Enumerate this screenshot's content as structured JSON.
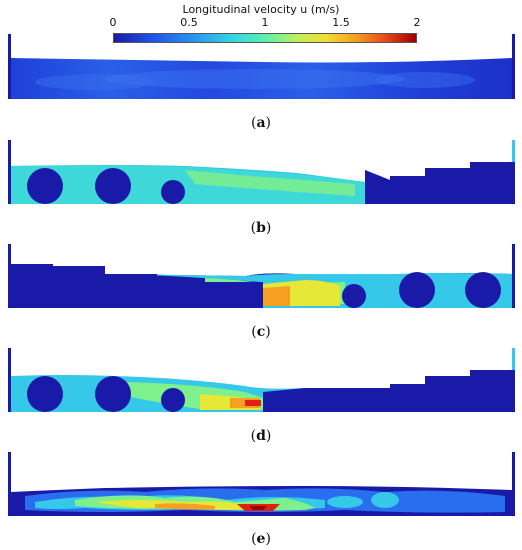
{
  "colorbar": {
    "title": "Longitudinal velocity u (m/s)",
    "ticks": [
      "0",
      "0.5",
      "1",
      "1.5",
      "2"
    ],
    "range": [
      0,
      2
    ]
  },
  "panels": [
    {
      "label": "a",
      "caption_open": "(",
      "caption_close": ")"
    },
    {
      "label": "b",
      "caption_open": "(",
      "caption_close": ")"
    },
    {
      "label": "c",
      "caption_open": "(",
      "caption_close": ")"
    },
    {
      "label": "d",
      "caption_open": "(",
      "caption_close": ")"
    },
    {
      "label": "e",
      "caption_open": "(",
      "caption_close": ")"
    }
  ],
  "colors": {
    "deep_blue": "#1a1aa8",
    "blue": "#1f50e8",
    "cyan": "#35d8e0",
    "green": "#7ef08c",
    "yellow": "#f0e030",
    "orange": "#f5a020",
    "red": "#e02010",
    "dark_red": "#a00000"
  }
}
